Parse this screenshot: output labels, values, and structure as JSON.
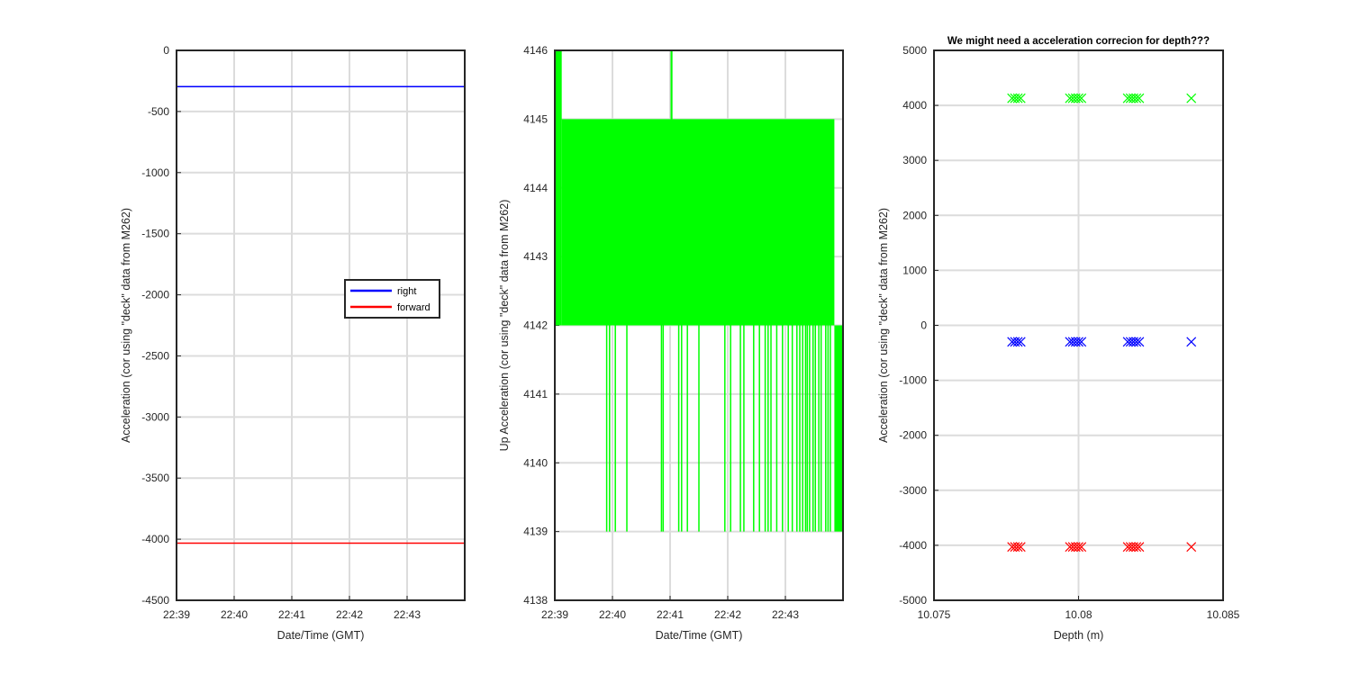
{
  "chart_data": [
    {
      "type": "line",
      "title": "",
      "xlabel": "Date/Time (GMT)",
      "ylabel": "Acceleration (cor using \"deck\" data from M262)",
      "xtick_labels": [
        "22:39",
        "22:40",
        "22:41",
        "22:42",
        "22:43"
      ],
      "xlim_minutes": [
        0,
        5
      ],
      "ylim": [
        -4500,
        0
      ],
      "yticks": [
        0,
        -500,
        -1000,
        -1500,
        -2000,
        -2500,
        -3000,
        -3500,
        -4000,
        -4500
      ],
      "grid": true,
      "legend": {
        "placement": "right",
        "entries": [
          "right",
          "forward"
        ]
      },
      "series": [
        {
          "name": "right",
          "color": "#0000ff",
          "x_minutes": [
            0,
            5
          ],
          "values": [
            -296,
            -296
          ]
        },
        {
          "name": "forward",
          "color": "#ff0000",
          "x_minutes": [
            0,
            5
          ],
          "values": [
            -4032,
            -4032
          ]
        }
      ]
    },
    {
      "type": "line",
      "title": "",
      "xlabel": "Date/Time (GMT)",
      "ylabel": "Up Acceleration (cor using \"deck\" data from M262)",
      "xtick_labels": [
        "22:39",
        "22:40",
        "22:41",
        "22:42",
        "22:43"
      ],
      "xlim_minutes": [
        0,
        5
      ],
      "ylim": [
        4138,
        4146
      ],
      "yticks": [
        4138,
        4139,
        4140,
        4141,
        4142,
        4143,
        4144,
        4145,
        4146
      ],
      "grid": true,
      "series": [
        {
          "color": "#00ff00",
          "band_low": 4142,
          "band_high": 4145,
          "start_spike_value": 4146,
          "start_spike_end_minutes": 0.12,
          "spikes_to_4146_minutes": [
            2.02,
            2.03
          ],
          "drops_to_4139_minutes": [
            0.9,
            0.95,
            1.05,
            1.25,
            1.85,
            1.88,
            2.15,
            2.2,
            2.3,
            2.5,
            2.95,
            3.05,
            3.22,
            3.28,
            3.45,
            3.55,
            3.65,
            3.7,
            3.75,
            3.85,
            3.95,
            4.05,
            4.12,
            4.2,
            4.25,
            4.3,
            4.35,
            4.38,
            4.42,
            4.48,
            4.52,
            4.58,
            4.62,
            4.7,
            4.74,
            4.78
          ],
          "end_band_minutes": [
            4.85,
            5.0
          ],
          "end_band_values": [
            4139,
            4142
          ]
        }
      ]
    },
    {
      "type": "scatter",
      "title": "We might need a acceleration correcion for depth???",
      "xlabel": "Depth (m)",
      "ylabel": "Acceleration (cor using \"deck\" data from M262)",
      "xlim": [
        10.075,
        10.085
      ],
      "xticks": [
        10.075,
        10.08,
        10.085
      ],
      "xtick_labels": [
        "10.075",
        "10.08",
        "10.085"
      ],
      "ylim": [
        -5000,
        5000
      ],
      "yticks": [
        5000,
        4000,
        3000,
        2000,
        1000,
        0,
        -1000,
        -2000,
        -3000,
        -4000,
        -5000
      ],
      "grid": "y",
      "marker": "x",
      "series": [
        {
          "color": "#00ff00",
          "x": [
            10.0777,
            10.0778,
            10.0779,
            10.078,
            10.0797,
            10.0798,
            10.0799,
            10.08,
            10.0801,
            10.0817,
            10.0818,
            10.0819,
            10.082,
            10.0821,
            10.0839
          ],
          "values": [
            4130,
            4130,
            4130,
            4130,
            4130,
            4130,
            4130,
            4130,
            4130,
            4130,
            4130,
            4130,
            4130,
            4130,
            4130
          ]
        },
        {
          "color": "#0000ff",
          "x": [
            10.0777,
            10.0778,
            10.0779,
            10.078,
            10.0797,
            10.0798,
            10.0799,
            10.08,
            10.0801,
            10.0817,
            10.0818,
            10.0819,
            10.082,
            10.0821,
            10.0839
          ],
          "values": [
            -300,
            -300,
            -300,
            -300,
            -300,
            -300,
            -300,
            -300,
            -300,
            -300,
            -300,
            -300,
            -300,
            -300,
            -300
          ]
        },
        {
          "color": "#ff0000",
          "x": [
            10.0777,
            10.0778,
            10.0779,
            10.078,
            10.0797,
            10.0798,
            10.0799,
            10.08,
            10.0801,
            10.0817,
            10.0818,
            10.0819,
            10.082,
            10.0821,
            10.0839
          ],
          "values": [
            -4030,
            -4030,
            -4030,
            -4030,
            -4030,
            -4030,
            -4030,
            -4030,
            -4030,
            -4030,
            -4030,
            -4030,
            -4030,
            -4030,
            -4030
          ]
        }
      ]
    }
  ]
}
